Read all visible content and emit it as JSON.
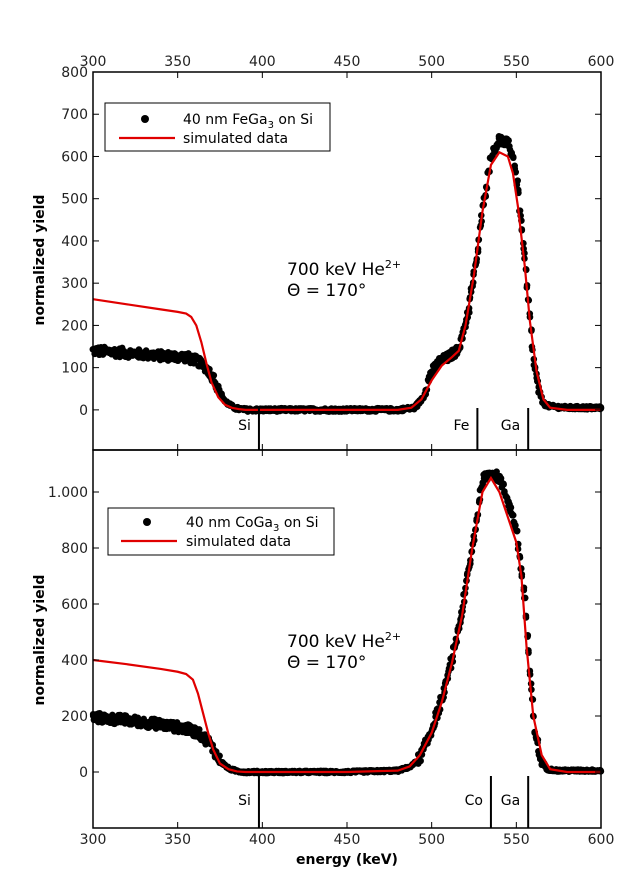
{
  "figure": {
    "xlabel": "energy (keV)",
    "colors": {
      "data": "#000000",
      "sim": "#e00000"
    }
  },
  "chart_data": [
    {
      "type": "scatter",
      "xlim": [
        300,
        600
      ],
      "ylim": [
        -95,
        800
      ],
      "x_ticks": [
        300,
        350,
        400,
        450,
        500,
        550,
        600
      ],
      "x_tick_labels": [
        "300",
        "350",
        "400",
        "450",
        "500",
        "550",
        "600"
      ],
      "y_ticks": [
        0,
        100,
        200,
        300,
        400,
        500,
        600,
        700,
        800
      ],
      "y_tick_labels": [
        "0",
        "100",
        "200",
        "300",
        "400",
        "500",
        "600",
        "700",
        "800"
      ],
      "ylabel": "normalized yield",
      "legend": {
        "position": "top-left",
        "entries": [
          {
            "marker": "dot",
            "base": "40 nm FeGa",
            "sub": "3",
            "tail": " on Si"
          },
          {
            "marker": "line",
            "text": "simulated data"
          }
        ]
      },
      "annotation": {
        "line1": "700 keV He",
        "sup": "2+",
        "line2": "Θ = 170°"
      },
      "element_markers": [
        {
          "label": "Si",
          "x": 398
        },
        {
          "label": "Fe",
          "x": 527
        },
        {
          "label": "Ga",
          "x": 557
        }
      ],
      "series": [
        {
          "name": "40 nm FeGa3 on Si",
          "kind": "measured",
          "x": [
            300,
            320,
            340,
            355,
            362,
            368,
            372,
            375,
            378,
            382,
            385,
            390,
            395,
            400,
            420,
            450,
            480,
            490,
            495,
            500,
            505,
            510,
            515,
            518,
            522,
            527,
            530,
            535,
            540,
            545,
            548,
            550,
            552,
            555,
            558,
            560,
            563,
            566,
            570,
            580,
            600
          ],
          "y": [
            140,
            135,
            128,
            125,
            115,
            95,
            70,
            40,
            20,
            8,
            3,
            0,
            0,
            0,
            0,
            0,
            0,
            5,
            30,
            90,
            115,
            125,
            140,
            170,
            240,
            370,
            470,
            600,
            640,
            630,
            600,
            560,
            480,
            360,
            220,
            120,
            50,
            15,
            8,
            5,
            5
          ]
        },
        {
          "name": "simulated data",
          "kind": "simulated",
          "x": [
            300,
            320,
            340,
            350,
            355,
            358,
            361,
            364,
            367,
            370,
            374,
            378,
            382,
            386,
            390,
            400,
            450,
            480,
            488,
            494,
            500,
            506,
            512,
            516,
            520,
            525,
            530,
            535,
            540,
            545,
            548,
            551,
            555,
            558,
            562,
            566,
            570,
            580,
            600
          ],
          "y": [
            262,
            250,
            238,
            232,
            228,
            220,
            200,
            160,
            110,
            65,
            30,
            12,
            5,
            2,
            0,
            0,
            0,
            0,
            5,
            25,
            70,
            105,
            125,
            140,
            200,
            320,
            470,
            580,
            610,
            600,
            560,
            480,
            340,
            210,
            90,
            25,
            5,
            0,
            0
          ]
        }
      ]
    },
    {
      "type": "scatter",
      "xlim": [
        300,
        600
      ],
      "ylim": [
        -200,
        1150
      ],
      "x_ticks": [
        300,
        350,
        400,
        450,
        500,
        550,
        600
      ],
      "x_tick_labels": [
        "300",
        "350",
        "400",
        "450",
        "500",
        "550",
        "600"
      ],
      "y_ticks": [
        0,
        200,
        400,
        600,
        800,
        1000
      ],
      "y_tick_labels": [
        "0",
        "200",
        "400",
        "600",
        "800",
        "1.000"
      ],
      "ylabel": "normalized yield",
      "legend": {
        "position": "top-left",
        "entries": [
          {
            "marker": "dot",
            "base": "40 nm CoGa",
            "sub": "3",
            "tail": " on Si"
          },
          {
            "marker": "line",
            "text": "simulated data"
          }
        ]
      },
      "annotation": {
        "line1": "700 keV He",
        "sup": "2+",
        "line2": "Θ = 170°"
      },
      "element_markers": [
        {
          "label": "Si",
          "x": 398
        },
        {
          "label": "Co",
          "x": 535
        },
        {
          "label": "Ga",
          "x": 557
        }
      ],
      "series": [
        {
          "name": "40 nm CoGa3 on Si",
          "kind": "measured",
          "x": [
            300,
            320,
            340,
            355,
            362,
            368,
            372,
            376,
            380,
            385,
            390,
            400,
            450,
            480,
            488,
            494,
            500,
            506,
            512,
            518,
            524,
            530,
            535,
            540,
            545,
            550,
            555,
            558,
            561,
            564,
            568,
            575,
            600
          ],
          "y": [
            195,
            185,
            170,
            155,
            140,
            110,
            70,
            35,
            12,
            3,
            0,
            0,
            0,
            5,
            20,
            60,
            150,
            260,
            400,
            580,
            800,
            1040,
            1070,
            1050,
            970,
            870,
            620,
            350,
            150,
            50,
            10,
            5,
            5
          ]
        },
        {
          "name": "simulated data",
          "kind": "simulated",
          "x": [
            300,
            320,
            340,
            350,
            355,
            359,
            362,
            365,
            368,
            371,
            375,
            380,
            385,
            390,
            400,
            450,
            480,
            487,
            493,
            500,
            506,
            512,
            518,
            524,
            530,
            535,
            540,
            545,
            550,
            553,
            556,
            560,
            565,
            570,
            580,
            600
          ],
          "y": [
            400,
            385,
            368,
            358,
            350,
            330,
            280,
            210,
            140,
            80,
            30,
            10,
            2,
            0,
            0,
            0,
            5,
            20,
            60,
            140,
            250,
            390,
            560,
            800,
            1000,
            1050,
            1000,
            910,
            820,
            700,
            450,
            200,
            60,
            10,
            0,
            0
          ]
        }
      ]
    }
  ]
}
